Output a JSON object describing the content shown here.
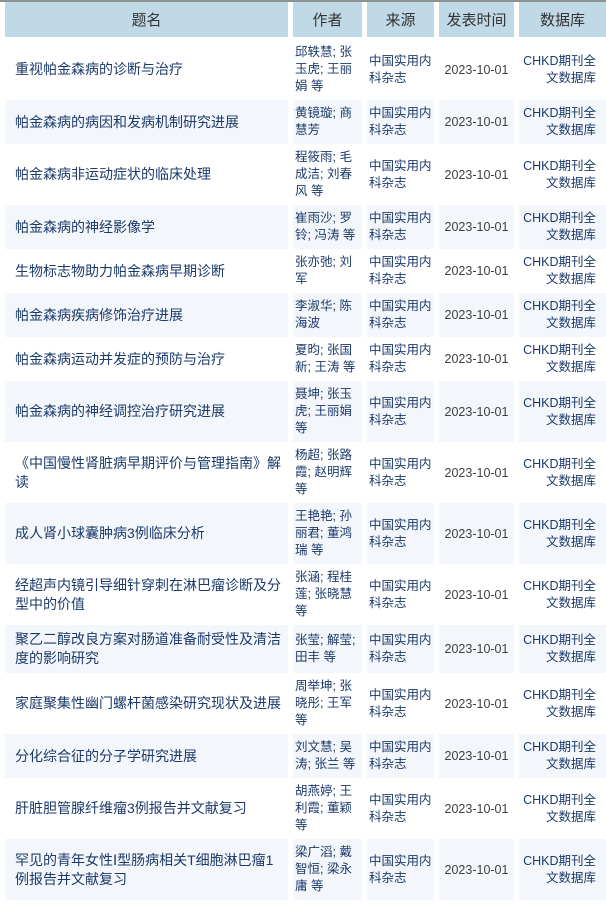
{
  "header": {
    "columns": [
      "题名",
      "作者",
      "来源",
      "发表时间",
      "数据库"
    ]
  },
  "rows": [
    {
      "title": "重视帕金森病的诊断与治疗",
      "authors": "邱轶慧; 张玉虎; 王丽娟 等",
      "source": "中国实用内科杂志",
      "date": "2023-10-01",
      "database": "CHKD期刊全文数据库"
    },
    {
      "title": "帕金森病的病因和发病机制研究进展",
      "authors": "黄镜璇; 商慧芳",
      "source": "中国实用内科杂志",
      "date": "2023-10-01",
      "database": "CHKD期刊全文数据库"
    },
    {
      "title": "帕金森病非运动症状的临床处理",
      "authors": "程筱雨; 毛成洁; 刘春风 等",
      "source": "中国实用内科杂志",
      "date": "2023-10-01",
      "database": "CHKD期刊全文数据库"
    },
    {
      "title": "帕金森病的神经影像学",
      "authors": "崔雨沙; 罗铃; 冯涛 等",
      "source": "中国实用内科杂志",
      "date": "2023-10-01",
      "database": "CHKD期刊全文数据库"
    },
    {
      "title": "生物标志物助力帕金森病早期诊断",
      "authors": "张亦弛; 刘军",
      "source": "中国实用内科杂志",
      "date": "2023-10-01",
      "database": "CHKD期刊全文数据库"
    },
    {
      "title": "帕金森病疾病修饰治疗进展",
      "authors": "李淑华; 陈海波",
      "source": "中国实用内科杂志",
      "date": "2023-10-01",
      "database": "CHKD期刊全文数据库"
    },
    {
      "title": "帕金森病运动并发症的预防与治疗",
      "authors": "夏昀; 张国新; 王涛 等",
      "source": "中国实用内科杂志",
      "date": "2023-10-01",
      "database": "CHKD期刊全文数据库"
    },
    {
      "title": "帕金森病的神经调控治疗研究进展",
      "authors": "聂坤; 张玉虎; 王丽娟 等",
      "source": "中国实用内科杂志",
      "date": "2023-10-01",
      "database": "CHKD期刊全文数据库"
    },
    {
      "title": "《中国慢性肾脏病早期评价与管理指南》解读",
      "authors": "杨超; 张路霞; 赵明辉 等",
      "source": "中国实用内科杂志",
      "date": "2023-10-01",
      "database": "CHKD期刊全文数据库"
    },
    {
      "title": "成人肾小球囊肿病3例临床分析",
      "authors": "王艳艳; 孙丽君; 董鸿瑞 等",
      "source": "中国实用内科杂志",
      "date": "2023-10-01",
      "database": "CHKD期刊全文数据库"
    },
    {
      "title": "经超声内镜引导细针穿刺在淋巴瘤诊断及分型中的价值",
      "authors": "张涵; 程桂莲; 张晓慧 等",
      "source": "中国实用内科杂志",
      "date": "2023-10-01",
      "database": "CHKD期刊全文数据库"
    },
    {
      "title": "聚乙二醇改良方案对肠道准备耐受性及清洁度的影响研究",
      "authors": "张莹; 解莹; 田丰 等",
      "source": "中国实用内科杂志",
      "date": "2023-10-01",
      "database": "CHKD期刊全文数据库"
    },
    {
      "title": "家庭聚集性幽门螺杆菌感染研究现状及进展",
      "authors": "周举坤; 张晓彤; 王军 等",
      "source": "中国实用内科杂志",
      "date": "2023-10-01",
      "database": "CHKD期刊全文数据库"
    },
    {
      "title": "分化综合征的分子学研究进展",
      "authors": "刘文慧; 吴涛; 张兰 等",
      "source": "中国实用内科杂志",
      "date": "2023-10-01",
      "database": "CHKD期刊全文数据库"
    },
    {
      "title": "肝脏胆管腺纤维瘤3例报告并文献复习",
      "authors": "胡燕婷; 王利霞; 董颖 等",
      "source": "中国实用内科杂志",
      "date": "2023-10-01",
      "database": "CHKD期刊全文数据库"
    },
    {
      "title": "罕见的青年女性Ⅰ型肠病相关T细胞淋巴瘤1例报告并文献复习",
      "authors": "梁广滔; 戴智恒; 梁永庸 等",
      "source": "中国实用内科杂志",
      "date": "2023-10-01",
      "database": "CHKD期刊全文数据库"
    }
  ],
  "colors": {
    "header_bg": "#c0d9e6",
    "row_alt_bg": "#f3f6fa",
    "link": "#1b3a6b",
    "date_text": "#3f3f3f",
    "top_line": "#8f8f8f"
  }
}
